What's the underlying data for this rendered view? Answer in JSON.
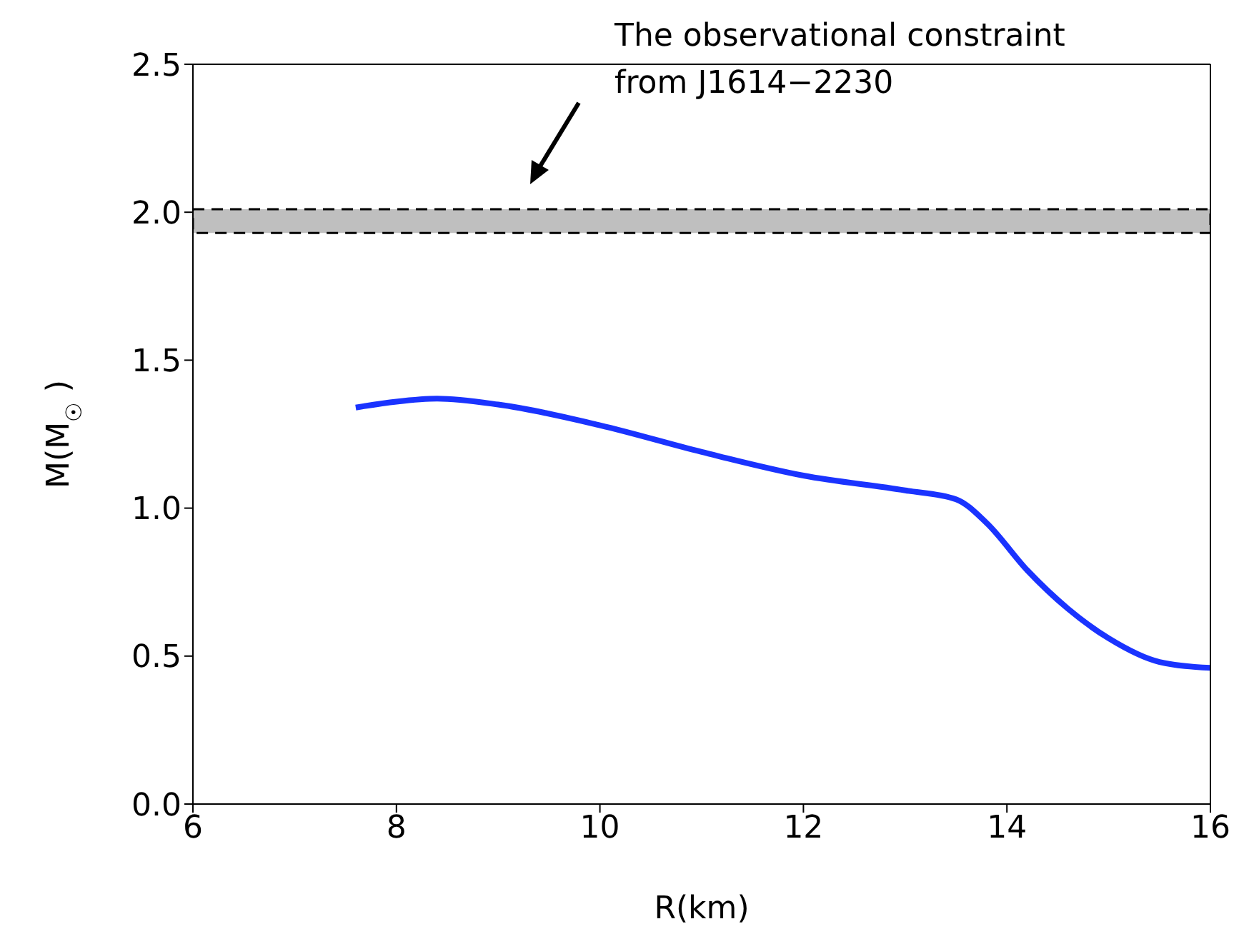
{
  "chart_data": {
    "type": "line",
    "xlabel": "R(km)",
    "ylabel": "M(M$_{☉}$)",
    "x": [
      7.6,
      8.0,
      8.4,
      9.0,
      10.0,
      11.0,
      12.0,
      13.0,
      13.5,
      13.8,
      14.2,
      14.6,
      15.0,
      15.5,
      16.0
    ],
    "series": [
      {
        "color": "#1a33ff",
        "values": [
          1.34,
          1.36,
          1.37,
          1.35,
          1.28,
          1.19,
          1.11,
          1.06,
          1.03,
          0.95,
          0.79,
          0.66,
          0.56,
          0.48,
          0.46
        ]
      }
    ],
    "xlim": [
      6,
      16
    ],
    "xticks": [
      6,
      8,
      10,
      12,
      14,
      16
    ],
    "ylim": [
      0,
      2.5
    ],
    "yticks": [
      {
        "value": 0,
        "label": "0.0"
      },
      {
        "value": 0.5,
        "label": "0.5"
      },
      {
        "value": 1,
        "label": "1.0"
      },
      {
        "value": 1.5,
        "label": "1.5"
      },
      {
        "value": 2,
        "label": "2.0"
      },
      {
        "value": 2.5,
        "label": "2.5"
      }
    ],
    "bands": [
      {
        "axis": "y",
        "from": 1.93,
        "to": 2.01,
        "color": "#bfbfbf"
      }
    ],
    "annotations": [
      "The observational constraint from J1614−2230"
    ],
    "marker": "none",
    "line_style": "solid"
  }
}
